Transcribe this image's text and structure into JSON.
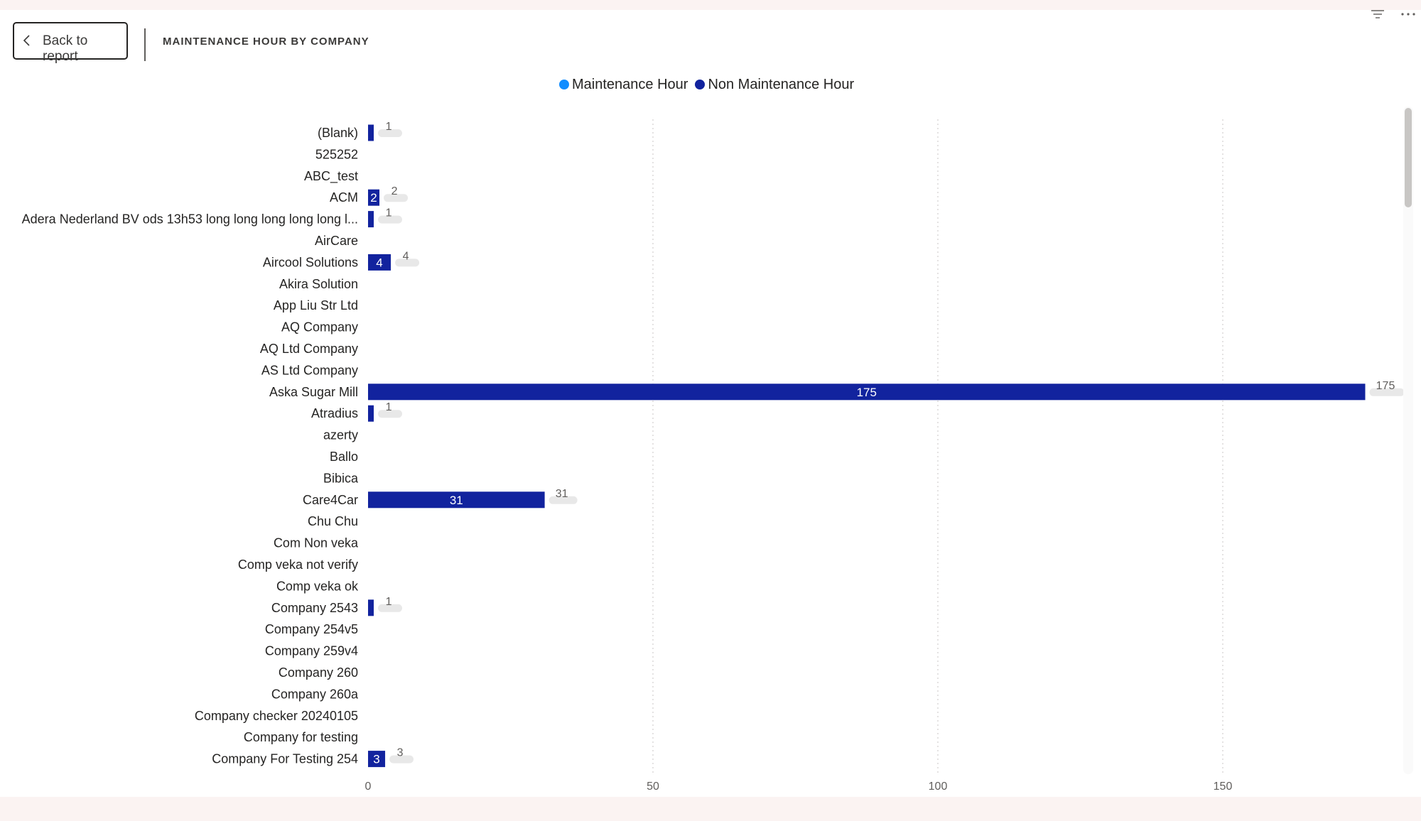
{
  "header": {
    "back_label": "Back to report",
    "title": "MAINTENANCE HOUR BY COMPANY"
  },
  "colors": {
    "maintenance": "#118dff",
    "non_maintenance": "#12239e",
    "gridline": "#c8c6c4",
    "bubble": "#e8e8e8"
  },
  "icons": [
    "chevron-left-icon",
    "filter-icon",
    "more-options-icon"
  ],
  "chart_data": {
    "type": "bar",
    "orientation": "horizontal",
    "legend_position": "top-center",
    "grid": true,
    "xlim": [
      0,
      180
    ],
    "x_ticks": [
      0,
      50,
      100,
      150
    ],
    "categories": [
      "(Blank)",
      "525252",
      "ABC_test",
      "ACM",
      "Adera Nederland BV ods 13h53 long long long long long l...",
      "AirCare",
      "Aircool Solutions",
      "Akira Solution",
      "App Liu Str Ltd",
      "AQ Company",
      "AQ Ltd Company",
      "AS Ltd Company",
      "Aska Sugar Mill",
      "Atradius",
      "azerty",
      "Ballo",
      "Bibica",
      "Care4Car",
      "Chu Chu",
      "Com Non veka",
      "Comp veka not verify",
      "Comp veka ok",
      "Company 2543",
      "Company 254v5",
      "Company 259v4",
      "Company 260",
      "Company 260a",
      "Company checker 20240105",
      "Company for testing",
      "Company For Testing 254"
    ],
    "series": [
      {
        "name": "Maintenance Hour",
        "values": [
          0,
          0,
          0,
          0,
          0,
          0,
          0,
          0,
          0,
          0,
          0,
          0,
          0,
          0,
          0,
          0,
          0,
          0,
          0,
          0,
          0,
          0,
          0,
          0,
          0,
          0,
          0,
          0,
          0,
          0
        ]
      },
      {
        "name": "Non Maintenance Hour",
        "values": [
          1,
          null,
          null,
          2,
          1,
          null,
          4,
          null,
          null,
          null,
          null,
          null,
          175,
          1,
          null,
          null,
          null,
          31,
          null,
          null,
          null,
          null,
          1,
          null,
          null,
          null,
          null,
          null,
          null,
          3
        ]
      }
    ],
    "inside_labels": [
      "",
      "",
      "",
      "2",
      "",
      "",
      "4",
      "",
      "",
      "",
      "",
      "",
      "175",
      "",
      "",
      "",
      "",
      "31",
      "",
      "",
      "",
      "",
      "",
      "",
      "",
      "",
      "",
      "",
      "",
      "3"
    ],
    "total_labels": [
      "1",
      "",
      "",
      "2",
      "1",
      "",
      "4",
      "",
      "",
      "",
      "",
      "",
      "175",
      "1",
      "",
      "",
      "",
      "31",
      "",
      "",
      "",
      "",
      "1",
      "",
      "",
      "",
      "",
      "",
      "",
      "3"
    ]
  }
}
